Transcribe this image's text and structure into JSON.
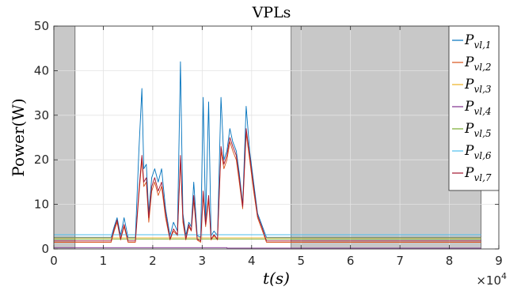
{
  "chart_data": {
    "type": "line",
    "title": "VPLs",
    "ylabel": "Power(W)",
    "xlabel": "t(s)",
    "x_multiplier_label": "×10",
    "x_multiplier_exp": "4",
    "xlim": [
      0,
      90000
    ],
    "ylim": [
      0,
      50
    ],
    "x_ticks": [
      0,
      10000,
      20000,
      30000,
      40000,
      50000,
      60000,
      70000,
      80000,
      90000
    ],
    "x_tick_labels": [
      "0",
      "1",
      "2",
      "3",
      "4",
      "5",
      "6",
      "7",
      "8",
      "9"
    ],
    "y_ticks": [
      0,
      10,
      20,
      30,
      40,
      50
    ],
    "y_tick_labels": [
      "0",
      "10",
      "20",
      "30",
      "40",
      "50"
    ],
    "grid": true,
    "legend_position": "top-right",
    "shaded_regions": [
      {
        "x_start": 0,
        "x_end": 4300,
        "color": "#c8c8c8"
      },
      {
        "x_start": 48000,
        "x_end": 86400,
        "color": "#c8c8c8"
      }
    ],
    "series": [
      {
        "name": "P_vl,1",
        "legend": {
          "base": "P",
          "sub": "vl,1"
        },
        "color": "#0072BD",
        "x": [
          0,
          4300,
          11600,
          12200,
          12800,
          13500,
          14200,
          15000,
          16500,
          17200,
          17800,
          18200,
          18700,
          19200,
          19800,
          20400,
          21100,
          21800,
          22600,
          23500,
          24200,
          25000,
          25600,
          26100,
          26700,
          27300,
          27800,
          28300,
          29000,
          29700,
          30200,
          30700,
          31300,
          31800,
          32400,
          33100,
          33800,
          34400,
          35000,
          35600,
          36200,
          36900,
          37500,
          38200,
          38900,
          39600,
          40400,
          41200,
          42200,
          43000,
          48000,
          86400
        ],
        "y": [
          2.6,
          2.6,
          2.6,
          5,
          7,
          3,
          7,
          2.6,
          2.6,
          22,
          36,
          18,
          19,
          8,
          16,
          18,
          15,
          18,
          9,
          3,
          6,
          4,
          42,
          8,
          3,
          6,
          5,
          15,
          3,
          2.6,
          34,
          6,
          33,
          3,
          4,
          3,
          34,
          20,
          22,
          27,
          24,
          22,
          17,
          10,
          32,
          22,
          15,
          8,
          5,
          2.6,
          2.6,
          2.6
        ]
      },
      {
        "name": "P_vl,2",
        "legend": {
          "base": "P",
          "sub": "vl,2"
        },
        "color": "#D95319",
        "x": [
          0,
          11600,
          12200,
          12800,
          13500,
          14200,
          15000,
          16500,
          17200,
          17800,
          18200,
          18700,
          19200,
          19800,
          20400,
          21100,
          21800,
          22600,
          23500,
          24200,
          25000,
          25600,
          26100,
          26700,
          27300,
          27800,
          28300,
          29000,
          29700,
          30200,
          30700,
          31300,
          31800,
          32400,
          33100,
          33800,
          34400,
          35000,
          35600,
          36200,
          36900,
          37500,
          38200,
          38900,
          39600,
          40400,
          41200,
          42200,
          43000,
          48000,
          86400
        ],
        "y": [
          1.5,
          1.5,
          4,
          6,
          2,
          5,
          1.5,
          1.5,
          12,
          20,
          14,
          15,
          6,
          13,
          15,
          12,
          14,
          7,
          2,
          4,
          3,
          20,
          6,
          2,
          5,
          4,
          11,
          2,
          1.5,
          12,
          5,
          11,
          2,
          3,
          2,
          22,
          18,
          20,
          24,
          22,
          20,
          15,
          9,
          26,
          20,
          13,
          7,
          4,
          1.5,
          1.5,
          1.5
        ]
      },
      {
        "name": "P_vl,3",
        "legend": {
          "base": "P",
          "sub": "vl,3"
        },
        "color": "#EDB120",
        "x": [
          0,
          86400
        ],
        "y": [
          2.5,
          2.5
        ]
      },
      {
        "name": "P_vl,4",
        "legend": {
          "base": "P",
          "sub": "vl,4"
        },
        "color": "#7E2F8E",
        "x": [
          0,
          35000,
          35000,
          86400
        ],
        "y": [
          0.3,
          0.3,
          0.2,
          0.2
        ]
      },
      {
        "name": "P_vl,5",
        "legend": {
          "base": "P",
          "sub": "vl,5"
        },
        "color": "#77AC30",
        "x": [
          0,
          86400
        ],
        "y": [
          2.2,
          2.2
        ]
      },
      {
        "name": "P_vl,6",
        "legend": {
          "base": "P",
          "sub": "vl,6"
        },
        "color": "#4DBEEE",
        "x": [
          0,
          86400
        ],
        "y": [
          3.2,
          3.2
        ]
      },
      {
        "name": "P_vl,7",
        "legend": {
          "base": "P",
          "sub": "vl,7"
        },
        "color": "#A2142F",
        "x": [
          0,
          11600,
          12200,
          12800,
          13500,
          14200,
          15000,
          16500,
          17200,
          17800,
          18200,
          18700,
          19200,
          19800,
          20400,
          21100,
          21800,
          22600,
          23500,
          24200,
          25000,
          25600,
          26100,
          26700,
          27300,
          27800,
          28300,
          29000,
          29700,
          30200,
          30700,
          31300,
          31800,
          32400,
          33100,
          33800,
          34400,
          35000,
          35600,
          36200,
          36900,
          37500,
          38200,
          38900,
          39600,
          40400,
          41200,
          42200,
          43000,
          48000,
          86400
        ],
        "y": [
          1.8,
          1.8,
          4.5,
          6.5,
          2.2,
          5.5,
          1.8,
          1.8,
          13,
          21,
          15,
          16,
          7,
          14,
          16,
          13,
          15,
          8,
          2.2,
          4.5,
          3.2,
          21,
          7,
          2.2,
          5.5,
          4.2,
          12,
          2.2,
          1.8,
          13,
          5.5,
          12,
          2.2,
          3.2,
          2.2,
          23,
          19,
          21,
          25,
          23,
          21,
          16,
          9.5,
          27,
          21,
          14,
          7.5,
          4.5,
          1.8,
          1.8,
          1.8
        ]
      }
    ]
  }
}
